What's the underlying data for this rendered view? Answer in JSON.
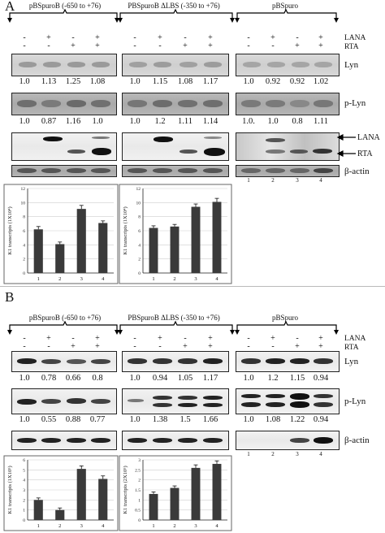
{
  "panels": [
    {
      "letter": "A",
      "groups": [
        {
          "title": "pBSpuroB (-650 to +76)"
        },
        {
          "title": "PBSpuroB ΔLBS (-350 to +76)"
        },
        {
          "title": "pBSpuro"
        }
      ],
      "treatments": {
        "lana_label": "LANA",
        "rta_label": "RTA",
        "lana": [
          "-",
          "+",
          "-",
          "+"
        ],
        "rta": [
          "-",
          "-",
          "+",
          "+"
        ]
      },
      "blots": [
        {
          "label": "Lyn",
          "values": [
            [
              "1.0",
              "1.13",
              "1.25",
              "1.08"
            ],
            [
              "1.0",
              "1.15",
              "1.08",
              "1.17"
            ],
            [
              "1.0",
              "0.92",
              "0.92",
              "1.02"
            ]
          ]
        },
        {
          "label": "p-Lyn",
          "values": [
            [
              "1.0",
              "0.87",
              "1.16",
              "1.0"
            ],
            [
              "1.0",
              "1.2",
              "1.11",
              "1.14"
            ],
            [
              "1.0.",
              "1.0",
              "0.8",
              "1.11"
            ]
          ]
        },
        {
          "label": "",
          "arrows": [
            "LANA",
            "RTA"
          ]
        },
        {
          "label": "β-actin",
          "lanes": [
            "1",
            "2",
            "3",
            "4"
          ]
        }
      ]
    },
    {
      "letter": "B",
      "groups": [
        {
          "title": "pBSpuroB (-650 to +76)"
        },
        {
          "title": "PBSpuroB ΔLBS (-350 to +76)"
        },
        {
          "title": "pBSpuro"
        }
      ],
      "treatments": {
        "lana_label": "LANA",
        "rta_label": "RTA",
        "lana": [
          "-",
          "+",
          "-",
          "+"
        ],
        "rta": [
          "-",
          "-",
          "+",
          "+"
        ]
      },
      "blots": [
        {
          "label": "Lyn",
          "values": [
            [
              "1.0",
              "0.78",
              "0.66",
              "0.8"
            ],
            [
              "1.0",
              "0.94",
              "1.05",
              "1.17"
            ],
            [
              "1.0",
              "1.2",
              "1.15",
              "0.94"
            ]
          ]
        },
        {
          "label": "p-Lyn",
          "values": [
            [
              "1.0",
              "0.55",
              "0.88",
              "0.77"
            ],
            [
              "1.0",
              "1.38",
              "1.5",
              "1.66"
            ],
            [
              "1.0",
              "1.08",
              "1.22",
              "0.94"
            ]
          ]
        },
        {
          "label": "β-actin",
          "lanes": [
            "1",
            "2",
            "3",
            "4"
          ]
        }
      ]
    }
  ],
  "chart_data": [
    {
      "type": "bar",
      "panel": "A",
      "categories": [
        "1",
        "2",
        "3",
        "4"
      ],
      "values": [
        6.2,
        4.1,
        9.1,
        7.1
      ],
      "errors": [
        0.4,
        0.3,
        0.5,
        0.3
      ],
      "ylabel": "K1 transcripts (1X10⁴)",
      "ylim": [
        0,
        12
      ],
      "yticks": [
        0,
        2,
        4,
        6,
        8,
        10,
        12
      ],
      "grid": true
    },
    {
      "type": "bar",
      "panel": "A",
      "categories": [
        "1",
        "2",
        "3",
        "4"
      ],
      "values": [
        6.4,
        6.6,
        9.4,
        10.1
      ],
      "errors": [
        0.3,
        0.3,
        0.4,
        0.5
      ],
      "ylabel": "K1 transcripts (1X10⁴)",
      "ylim": [
        0,
        12
      ],
      "yticks": [
        0,
        2,
        4,
        6,
        8,
        10,
        12
      ],
      "grid": true
    },
    {
      "type": "bar",
      "panel": "B",
      "categories": [
        "1",
        "2",
        "3",
        "4"
      ],
      "values": [
        2.0,
        1.0,
        5.1,
        4.1
      ],
      "errors": [
        0.2,
        0.2,
        0.3,
        0.3
      ],
      "ylabel": "K1 transcripts (1X10⁵)",
      "ylim": [
        0,
        6
      ],
      "yticks": [
        0,
        1,
        2,
        3,
        4,
        5,
        6
      ],
      "grid": true
    },
    {
      "type": "bar",
      "panel": "B",
      "categories": [
        "1",
        "2",
        "3",
        "4"
      ],
      "values": [
        1.3,
        1.6,
        2.6,
        2.8
      ],
      "errors": [
        0.1,
        0.1,
        0.15,
        0.15
      ],
      "ylabel": "K1 transcripts (2X10⁵)",
      "ylim": [
        0,
        3
      ],
      "yticks": [
        0,
        0.5,
        1,
        1.5,
        2,
        2.5,
        3
      ],
      "grid": true
    }
  ]
}
